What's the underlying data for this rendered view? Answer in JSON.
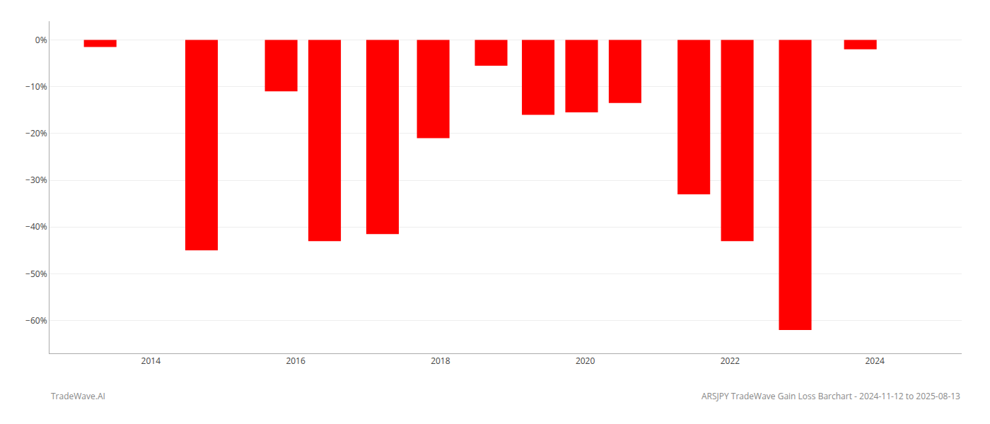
{
  "chart_data": {
    "type": "bar",
    "x": [
      2013.3,
      2014.7,
      2015.8,
      2016.4,
      2017.2,
      2017.9,
      2018.7,
      2019.35,
      2019.95,
      2020.55,
      2021.5,
      2022.1,
      2022.9,
      2023.8
    ],
    "values": [
      -1.5,
      -45.0,
      -11.0,
      -43.0,
      -41.5,
      -21.0,
      -5.5,
      -16.0,
      -15.5,
      -13.5,
      -33.0,
      -43.0,
      -62.0,
      -2.0
    ],
    "color": "#ff0000",
    "xlim": [
      2012.6,
      2025.2
    ],
    "xticks": [
      2014,
      2016,
      2018,
      2020,
      2022,
      2024
    ],
    "ylim": [
      -67,
      4
    ],
    "yticks": [
      {
        "value": 0,
        "label": "0%"
      },
      {
        "value": -10,
        "label": "−10%"
      },
      {
        "value": -20,
        "label": "−20%"
      },
      {
        "value": -30,
        "label": "−30%"
      },
      {
        "value": -40,
        "label": "−40%"
      },
      {
        "value": -50,
        "label": "−50%"
      },
      {
        "value": -60,
        "label": "−60%"
      }
    ],
    "grid": "y",
    "annotations": [
      "TradeWave.AI",
      "ARSJPY TradeWave Gain Loss Barchart - 2024-11-12 to 2025-08-13"
    ]
  }
}
